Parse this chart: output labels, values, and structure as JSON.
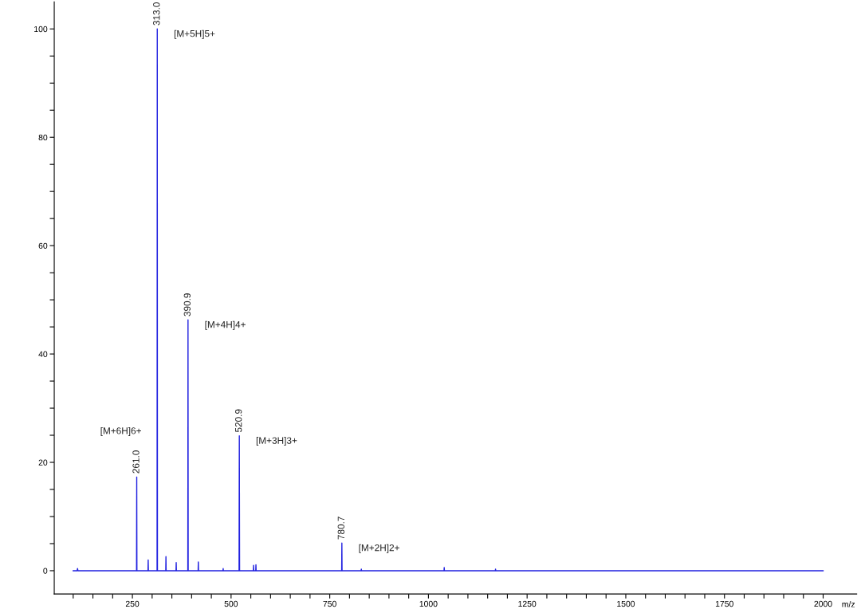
{
  "chart_data": {
    "type": "line",
    "xlabel": "m/z",
    "series": [
      {
        "color": "#2020e0",
        "x": [
          100,
          110,
          111,
          112,
          150,
          200,
          260.5,
          261,
          261.5,
          289.5,
          290,
          290.5,
          312.5,
          313,
          313.5,
          320,
          334.5,
          335,
          335.5,
          360.5,
          361,
          361.5,
          390.4,
          390.9,
          391.4,
          416.5,
          417,
          417.5,
          479.5,
          480,
          480.5,
          520.2,
          520.9,
          521.6,
          540,
          556.5,
          557,
          557.5,
          562.5,
          563,
          563.5,
          650,
          780.2,
          780.7,
          781.2,
          829.5,
          830,
          830.5,
          1039.5,
          1040,
          1040.5,
          1169.5,
          1170,
          1170.5,
          1500,
          2000
        ],
        "values": [
          0,
          0,
          0.4,
          0,
          0,
          0,
          0,
          17.3,
          0,
          0,
          2.0,
          0,
          0,
          100,
          0,
          0,
          0,
          2.6,
          0,
          0,
          1.5,
          0,
          0,
          46.3,
          0,
          0,
          1.6,
          0,
          0,
          0.4,
          0,
          0,
          24.9,
          0,
          0,
          0,
          1.0,
          0,
          0,
          1.1,
          0,
          0,
          0,
          5.1,
          0,
          0,
          0.3,
          0,
          0,
          0.6,
          0,
          0,
          0.3,
          0,
          0,
          0
        ],
        "name": null
      }
    ],
    "annotations": [
      {
        "text": "261.0",
        "x": 261,
        "y": 17.3
      },
      "[M+6H]6+",
      {
        "text": "313.0",
        "x": 313,
        "y": 100
      },
      "[M+5H]5+",
      {
        "text": "390.9",
        "x": 390.9,
        "y": 46.3
      },
      "[M+4H]4+",
      {
        "text": "520.9",
        "x": 520.9,
        "y": 24.9
      },
      "[M+3H]3+",
      {
        "text": "780.7",
        "x": 780.7,
        "y": 5.1
      },
      "[M+2H]2+"
    ],
    "xlim": [
      52,
      2085
    ],
    "xticks": [
      {
        "value": 100,
        "label": null
      },
      {
        "value": 150,
        "label": null
      },
      {
        "value": 200,
        "label": null
      },
      250,
      {
        "value": 300,
        "label": null
      },
      {
        "value": 350,
        "label": null
      },
      {
        "value": 400,
        "label": null
      },
      {
        "value": 450,
        "label": null
      },
      500,
      {
        "value": 550,
        "label": null
      },
      {
        "value": 600,
        "label": null
      },
      {
        "value": 650,
        "label": null
      },
      {
        "value": 700,
        "label": null
      },
      750,
      {
        "value": 800,
        "label": null
      },
      {
        "value": 850,
        "label": null
      },
      {
        "value": 900,
        "label": null
      },
      {
        "value": 950,
        "label": null
      },
      1000,
      {
        "value": 1050,
        "label": null
      },
      {
        "value": 1100,
        "label": null
      },
      {
        "value": 1150,
        "label": null
      },
      {
        "value": 1200,
        "label": null
      },
      1250,
      {
        "value": 1300,
        "label": null
      },
      {
        "value": 1350,
        "label": null
      },
      {
        "value": 1400,
        "label": null
      },
      {
        "value": 1450,
        "label": null
      },
      1500,
      {
        "value": 1550,
        "label": null
      },
      {
        "value": 1600,
        "label": null
      },
      {
        "value": 1650,
        "label": null
      },
      {
        "value": 1700,
        "label": null
      },
      1750,
      {
        "value": 1800,
        "label": null
      },
      {
        "value": 1850,
        "label": null
      },
      {
        "value": 1900,
        "label": null
      },
      {
        "value": 1950,
        "label": null
      },
      2000
    ],
    "ylim": [
      -4.3,
      105
    ],
    "yticks": [
      0,
      {
        "value": 5,
        "label": null
      },
      {
        "value": 10,
        "label": null
      },
      {
        "value": 15,
        "label": null
      },
      20,
      {
        "value": 25,
        "label": null
      },
      {
        "value": 30,
        "label": null
      },
      {
        "value": 35,
        "label": null
      },
      40,
      {
        "value": 45,
        "label": null
      },
      {
        "value": 50,
        "label": null
      },
      {
        "value": 55,
        "label": null
      },
      60,
      {
        "value": 65,
        "label": null
      },
      {
        "value": 70,
        "label": null
      },
      {
        "value": 75,
        "label": null
      },
      80,
      {
        "value": 85,
        "label": null
      },
      {
        "value": 90,
        "label": null
      },
      {
        "value": 95,
        "label": null
      },
      100
    ],
    "grid": false,
    "legend": false
  }
}
